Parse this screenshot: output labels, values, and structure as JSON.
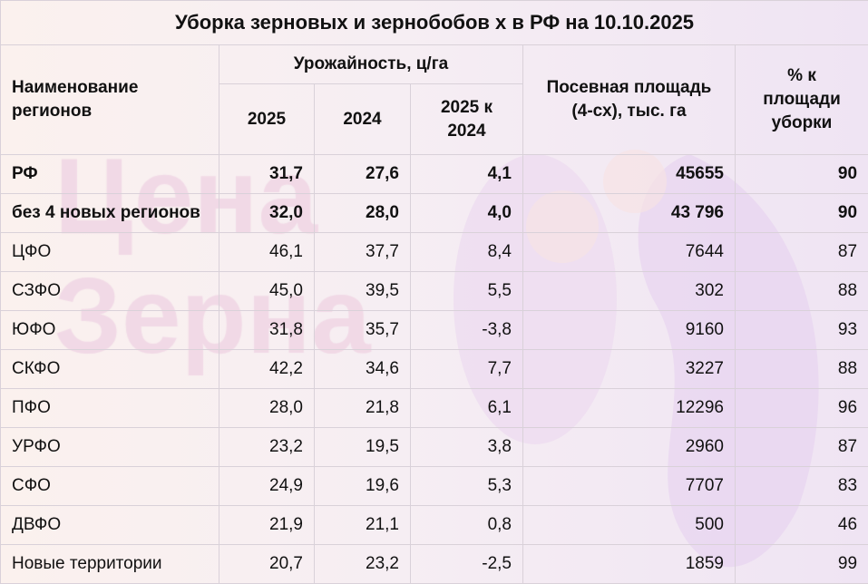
{
  "watermark": {
    "logo_text": "Цена Зерна",
    "lines": [
      "Цена",
      "Зерна"
    ],
    "color": "#f1d9e6",
    "shape_color": "#e6d3ef"
  },
  "title": "Уборка зерновых и зернобобов х в РФ на 10.10.2025",
  "headers": {
    "region": "Наименование регионов",
    "yield_group": "Урожайность, ц/га",
    "y2025": "2025",
    "y2024": "2024",
    "diff": "2025 к 2024",
    "area": "Посевная площадь (4-сх), тыс. га",
    "percent": "% к площади уборки"
  },
  "rows": [
    {
      "name": "РФ",
      "y2025": "31,7",
      "y2024": "27,6",
      "diff": "4,1",
      "area": "45655",
      "percent": "90",
      "bold": true
    },
    {
      "name": "без 4 новых регионов",
      "y2025": "32,0",
      "y2024": "28,0",
      "diff": "4,0",
      "area": "43 796",
      "percent": "90",
      "bold": true
    },
    {
      "name": "ЦФО",
      "y2025": "46,1",
      "y2024": "37,7",
      "diff": "8,4",
      "area": "7644",
      "percent": "87"
    },
    {
      "name": "СЗФО",
      "y2025": "45,0",
      "y2024": "39,5",
      "diff": "5,5",
      "area": "302",
      "percent": "88"
    },
    {
      "name": "ЮФО",
      "y2025": "31,8",
      "y2024": "35,7",
      "diff": "-3,8",
      "area": "9160",
      "percent": "93"
    },
    {
      "name": "СКФО",
      "y2025": "42,2",
      "y2024": "34,6",
      "diff": "7,7",
      "area": "3227",
      "percent": "88"
    },
    {
      "name": "ПФО",
      "y2025": "28,0",
      "y2024": "21,8",
      "diff": "6,1",
      "area": "12296",
      "percent": "96"
    },
    {
      "name": "УРФО",
      "y2025": "23,2",
      "y2024": "19,5",
      "diff": "3,8",
      "area": "2960",
      "percent": "87"
    },
    {
      "name": "СФО",
      "y2025": "24,9",
      "y2024": "19,6",
      "diff": "5,3",
      "area": "7707",
      "percent": "83"
    },
    {
      "name": "ДВФО",
      "y2025": "21,9",
      "y2024": "21,1",
      "diff": "0,8",
      "area": "500",
      "percent": "46"
    },
    {
      "name": "Новые территории",
      "y2025": "20,7",
      "y2024": "23,2",
      "diff": "-2,5",
      "area": "1859",
      "percent": "99"
    }
  ]
}
